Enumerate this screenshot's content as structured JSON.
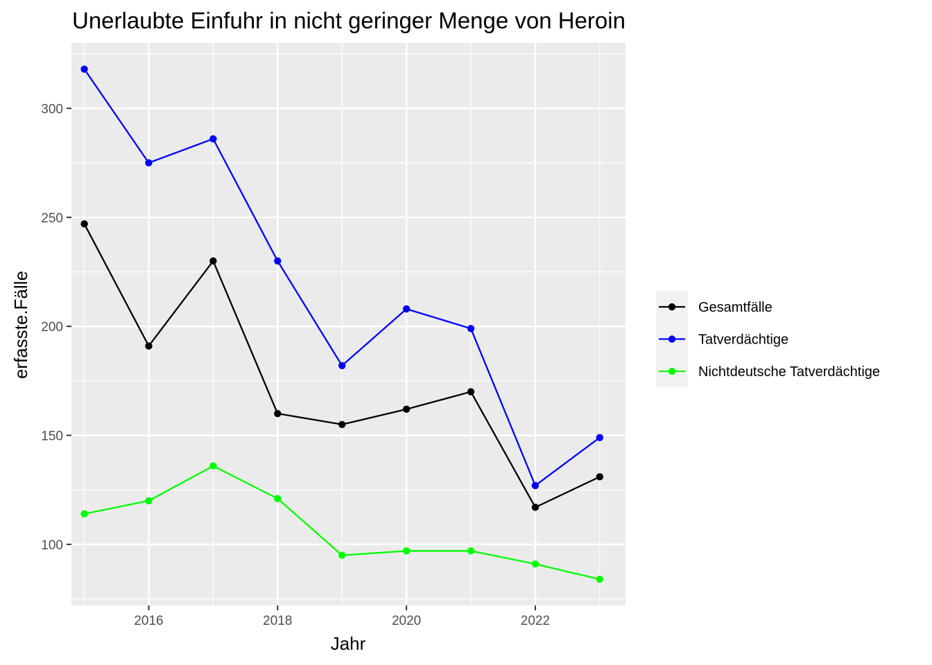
{
  "chart_data": {
    "type": "line",
    "title": "Unerlaubte Einfuhr in nicht geringer Menge von Heroin",
    "xlabel": "Jahr",
    "ylabel": "erfasste.Fälle",
    "x": [
      2015,
      2016,
      2017,
      2018,
      2019,
      2020,
      2021,
      2022,
      2023
    ],
    "xlim": [
      2014.8,
      2023.4
    ],
    "ylim": [
      72,
      330
    ],
    "x_ticks": [
      2016,
      2018,
      2020,
      2022
    ],
    "y_ticks": [
      100,
      150,
      200,
      250,
      300
    ],
    "grid": true,
    "legend_position": "right",
    "background": "#ebebeb",
    "series": [
      {
        "name": "Gesamtfälle",
        "color": "#000000",
        "values": [
          247,
          191,
          230,
          160,
          155,
          162,
          170,
          117,
          131
        ]
      },
      {
        "name": "Tatverdächtige",
        "color": "#0000ff",
        "values": [
          318,
          275,
          286,
          230,
          182,
          208,
          199,
          127,
          149
        ]
      },
      {
        "name": "Nichtdeutsche Tatverdächtige",
        "color": "#00ff00",
        "values": [
          114,
          120,
          136,
          121,
          95,
          97,
          97,
          91,
          84
        ]
      }
    ]
  }
}
